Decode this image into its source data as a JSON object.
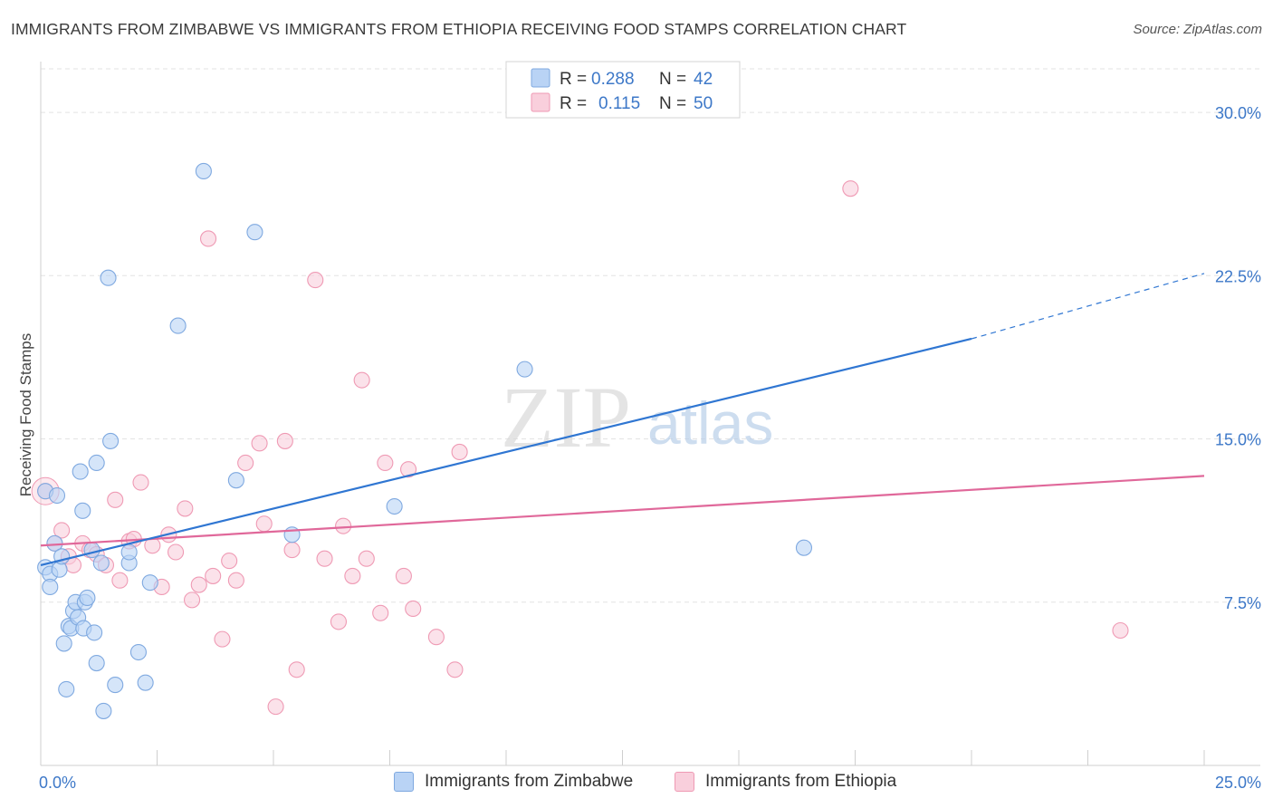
{
  "title": "IMMIGRANTS FROM ZIMBABWE VS IMMIGRANTS FROM ETHIOPIA RECEIVING FOOD STAMPS CORRELATION CHART",
  "source": "Source: ZipAtlas.com",
  "watermark": {
    "zip": "ZIP",
    "atlas": "atlas"
  },
  "colors": {
    "blue_fill": "#b9d3f5",
    "blue_stroke": "#7fa9e0",
    "blue_line": "#2f76d2",
    "pink_fill": "#f9cfdc",
    "pink_stroke": "#ef9ab4",
    "pink_line": "#e0689a",
    "axis_text": "#3d78c8",
    "grid": "#e3e3e3"
  },
  "chart_data": {
    "type": "scatter",
    "title": "IMMIGRANTS FROM ZIMBABWE VS IMMIGRANTS FROM ETHIOPIA RECEIVING FOOD STAMPS CORRELATION CHART",
    "xlabel": "",
    "ylabel": "Receiving Food Stamps",
    "xlim": [
      0,
      25
    ],
    "ylim": [
      0,
      32
    ],
    "x_tick_labels": [
      {
        "value": 0,
        "label": "0.0%"
      },
      {
        "value": 25,
        "label": "25.0%"
      }
    ],
    "y_tick_labels": [
      {
        "value": 7.5,
        "label": "7.5%"
      },
      {
        "value": 15.0,
        "label": "15.0%"
      },
      {
        "value": 22.5,
        "label": "22.5%"
      },
      {
        "value": 30.0,
        "label": "30.0%"
      }
    ],
    "legend_stats": [
      {
        "r_label": "R =",
        "r_value": "0.288",
        "n_label": "N =",
        "n_value": "42"
      },
      {
        "r_label": "R =",
        "r_value": "0.115",
        "n_label": "N =",
        "n_value": "50"
      }
    ],
    "series": [
      {
        "name": "Immigrants from Zimbabwe",
        "color": "blue",
        "points": [
          [
            0.1,
            12.6
          ],
          [
            0.1,
            9.1
          ],
          [
            0.2,
            8.8
          ],
          [
            0.2,
            8.2
          ],
          [
            0.3,
            10.2
          ],
          [
            0.35,
            12.4
          ],
          [
            0.4,
            9.0
          ],
          [
            0.45,
            9.6
          ],
          [
            0.5,
            5.6
          ],
          [
            0.55,
            3.5
          ],
          [
            0.6,
            6.4
          ],
          [
            0.65,
            6.3
          ],
          [
            0.7,
            7.1
          ],
          [
            0.75,
            7.5
          ],
          [
            0.8,
            6.8
          ],
          [
            0.85,
            13.5
          ],
          [
            0.9,
            11.7
          ],
          [
            0.92,
            6.3
          ],
          [
            0.95,
            7.5
          ],
          [
            1.0,
            7.7
          ],
          [
            1.1,
            9.9
          ],
          [
            1.15,
            6.1
          ],
          [
            1.2,
            13.9
          ],
          [
            1.2,
            4.7
          ],
          [
            1.35,
            2.5
          ],
          [
            1.45,
            22.4
          ],
          [
            1.5,
            14.9
          ],
          [
            1.6,
            3.7
          ],
          [
            1.9,
            9.3
          ],
          [
            1.9,
            9.8
          ],
          [
            2.1,
            5.2
          ],
          [
            2.25,
            3.8
          ],
          [
            2.35,
            8.4
          ],
          [
            2.95,
            20.2
          ],
          [
            3.5,
            27.3
          ],
          [
            4.2,
            13.1
          ],
          [
            4.6,
            24.5
          ],
          [
            5.4,
            10.6
          ],
          [
            7.6,
            11.9
          ],
          [
            10.4,
            18.2
          ],
          [
            16.4,
            10.0
          ],
          [
            1.3,
            9.3
          ]
        ]
      },
      {
        "name": "Immigrants from Ethiopia",
        "color": "pink",
        "points": [
          [
            0.1,
            12.6
          ],
          [
            0.3,
            10.2
          ],
          [
            0.45,
            10.8
          ],
          [
            0.6,
            9.6
          ],
          [
            0.7,
            9.2
          ],
          [
            0.9,
            10.2
          ],
          [
            1.05,
            9.9
          ],
          [
            1.2,
            9.7
          ],
          [
            1.4,
            9.2
          ],
          [
            1.6,
            12.2
          ],
          [
            1.7,
            8.5
          ],
          [
            1.9,
            10.3
          ],
          [
            2.0,
            10.4
          ],
          [
            2.15,
            13.0
          ],
          [
            2.4,
            10.1
          ],
          [
            2.6,
            8.2
          ],
          [
            2.75,
            10.6
          ],
          [
            2.9,
            9.8
          ],
          [
            3.1,
            11.8
          ],
          [
            3.25,
            7.6
          ],
          [
            3.4,
            8.3
          ],
          [
            3.6,
            24.2
          ],
          [
            3.7,
            8.7
          ],
          [
            3.9,
            5.8
          ],
          [
            4.05,
            9.4
          ],
          [
            4.2,
            8.5
          ],
          [
            4.4,
            13.9
          ],
          [
            4.7,
            14.8
          ],
          [
            4.8,
            11.1
          ],
          [
            5.05,
            2.7
          ],
          [
            5.25,
            14.9
          ],
          [
            5.4,
            9.9
          ],
          [
            5.5,
            4.4
          ],
          [
            5.9,
            22.3
          ],
          [
            6.1,
            9.5
          ],
          [
            6.4,
            6.6
          ],
          [
            6.5,
            11.0
          ],
          [
            6.7,
            8.7
          ],
          [
            6.9,
            17.7
          ],
          [
            7.0,
            9.5
          ],
          [
            7.3,
            7.0
          ],
          [
            7.4,
            13.9
          ],
          [
            7.8,
            8.7
          ],
          [
            7.9,
            13.6
          ],
          [
            8.0,
            7.2
          ],
          [
            8.5,
            5.9
          ],
          [
            8.9,
            4.4
          ],
          [
            9.0,
            14.4
          ],
          [
            17.4,
            26.5
          ],
          [
            23.2,
            6.2
          ]
        ]
      }
    ],
    "trend_lines": [
      {
        "series": "Immigrants from Zimbabwe",
        "x_start": 0,
        "y_start": 9.2,
        "x_solid_end": 20.0,
        "y_solid_end": 19.6,
        "x_dashed_end": 25.0,
        "y_dashed_end": 22.6
      },
      {
        "series": "Immigrants from Ethiopia",
        "x_start": 0,
        "y_start": 10.1,
        "x_end": 25.0,
        "y_end": 13.3
      }
    ]
  }
}
